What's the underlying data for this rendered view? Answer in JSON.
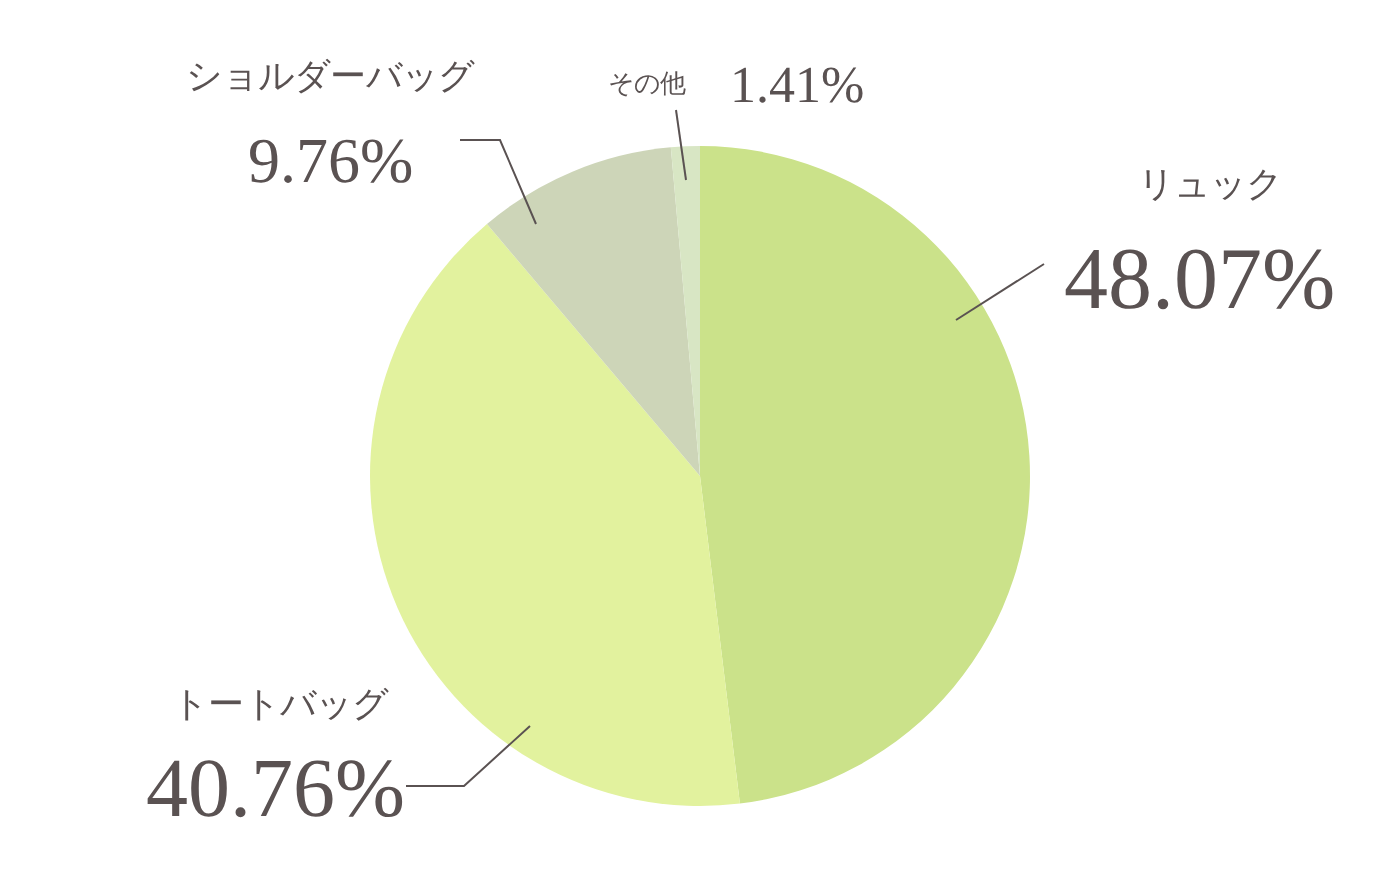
{
  "chart_data": {
    "type": "pie",
    "categories": [
      "リュック",
      "トートバッグ",
      "ショルダーバッグ",
      "その他"
    ],
    "values": [
      48.07,
      40.76,
      9.76,
      1.41
    ],
    "value_labels": [
      "48.07%",
      "40.76%",
      "9.76%",
      "1.41%"
    ],
    "colors": [
      "#cbe28a",
      "#e2f29e",
      "#cdd5b8",
      "#d8e6c4"
    ]
  }
}
